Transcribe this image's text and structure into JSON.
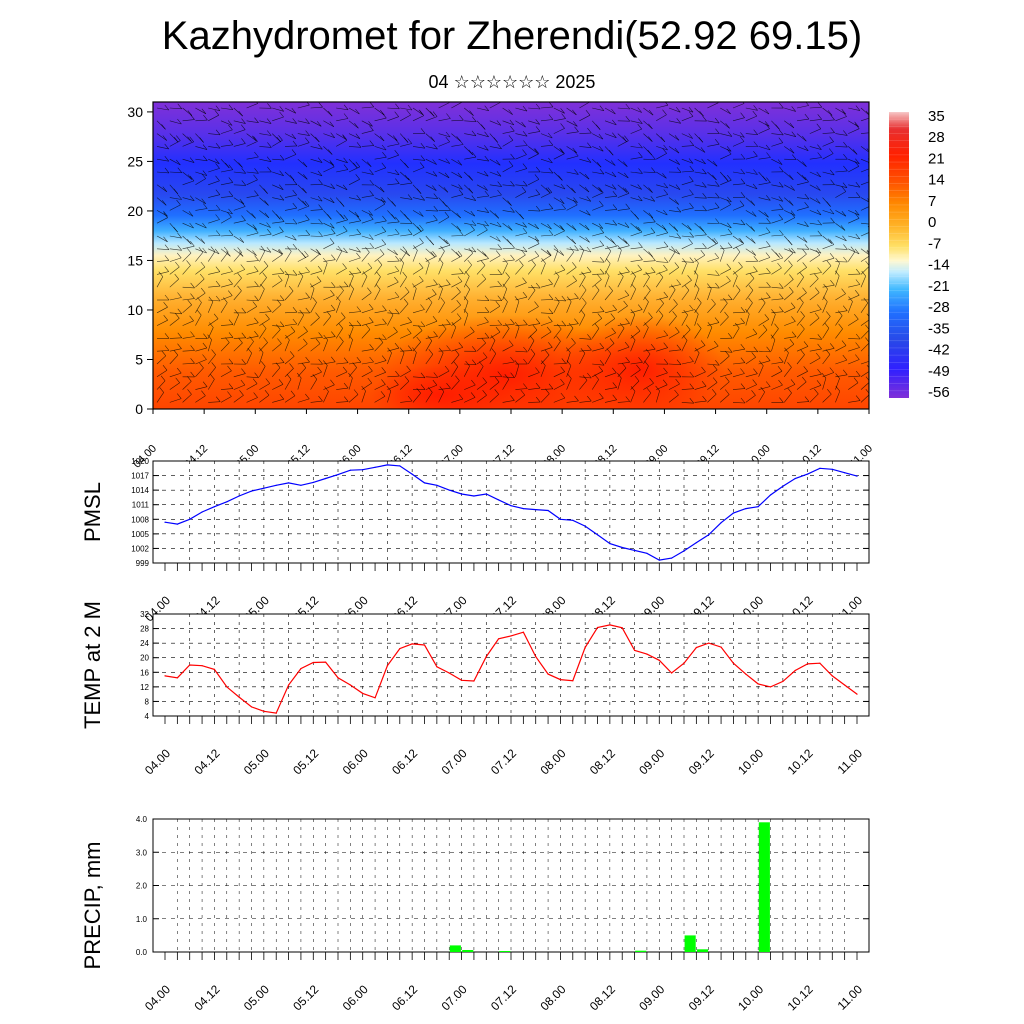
{
  "title": "Kazhydromet for Zherendi(52.92 69.15)",
  "subtitle": "04 ☆☆☆☆☆☆ 2025",
  "colors": {
    "pmsl_line": "#0000ff",
    "temp_line": "#ff0000",
    "precip_bar": "#00ff00"
  },
  "chart_data": [
    {
      "type": "heatmap",
      "name": "upper-air temperature cross-section",
      "xlabel": "",
      "ylabel": "",
      "x_ticks": [
        "04.00",
        "04.12",
        "05.00",
        "05.12",
        "06.00",
        "06.12",
        "07.00",
        "07.12",
        "08.00",
        "08.12",
        "09.00",
        "09.12",
        "10.00",
        "10.12",
        "11.00"
      ],
      "ylim": [
        0,
        31
      ],
      "y_ticks": [
        0,
        5,
        10,
        15,
        20,
        25,
        30
      ],
      "colorbar_labels": [
        "35",
        "28",
        "21",
        "14",
        "7",
        "0",
        "-7",
        "-14",
        "-21",
        "-28",
        "-35",
        "-42",
        "-49",
        "-56"
      ],
      "colorbar_colors": [
        "#f4c2c2",
        "#e83030",
        "#ff3000",
        "#ff5a00",
        "#ff8a00",
        "#ffb020",
        "#ffe066",
        "#fff6c0",
        "#b0e6ff",
        "#40b8ff",
        "#2070ff",
        "#2840e8",
        "#3020ff",
        "#7a30e0"
      ],
      "note_level_profile": [
        {
          "height": 0,
          "temp": 14
        },
        {
          "height": 5,
          "temp": 12
        },
        {
          "height": 10,
          "temp": 2
        },
        {
          "height": 15,
          "temp": -14
        },
        {
          "height": 17,
          "temp": -35
        },
        {
          "height": 20,
          "temp": -49
        },
        {
          "height": 25,
          "temp": -58
        },
        {
          "height": 30,
          "temp": -55
        }
      ]
    },
    {
      "type": "line",
      "ylabel": "PMSL",
      "ylim": [
        999,
        1020
      ],
      "y_ticks": [
        "1020",
        "1017",
        "1014",
        "1011",
        "1008",
        "1005",
        "1002",
        "999"
      ],
      "x_ticks": [
        "04.00",
        "04.12",
        "05.00",
        "05.12",
        "06.00",
        "06.12",
        "07.00",
        "07.12",
        "08.00",
        "08.12",
        "09.00",
        "09.12",
        "10.00",
        "10.12",
        "11.00"
      ],
      "x_hours": [
        0,
        3,
        6,
        9,
        12,
        15,
        18,
        21,
        24,
        27,
        30,
        33,
        36,
        39,
        42,
        45,
        48,
        51,
        54,
        57,
        60,
        63,
        66,
        69,
        72,
        75,
        78,
        81,
        84,
        87,
        90,
        93,
        96,
        99,
        102,
        105,
        108,
        111,
        114,
        117,
        120,
        123,
        126,
        129,
        132,
        135,
        138,
        141,
        144,
        147,
        150,
        153,
        156,
        159,
        162,
        165,
        168
      ],
      "values": [
        1007.4,
        1007.0,
        1008.0,
        1009.5,
        1010.6,
        1011.6,
        1012.8,
        1013.8,
        1014.4,
        1015.0,
        1015.5,
        1015.0,
        1015.6,
        1016.4,
        1017.2,
        1018.1,
        1018.2,
        1018.7,
        1019.2,
        1019.0,
        1017.3,
        1015.5,
        1015.0,
        1014.0,
        1013.2,
        1012.8,
        1013.2,
        1012.0,
        1010.8,
        1010.2,
        1010.0,
        1009.8,
        1008.0,
        1007.8,
        1006.6,
        1004.8,
        1003.0,
        1002.2,
        1001.6,
        1001.0,
        999.6,
        1000.0,
        1001.5,
        1003.2,
        1004.8,
        1007.3,
        1009.3,
        1010.2,
        1010.6,
        1013.0,
        1014.8,
        1016.4,
        1017.3,
        1018.5,
        1018.3,
        1017.6,
        1016.9
      ]
    },
    {
      "type": "line",
      "ylabel": "TEMP at 2 M",
      "ylim": [
        4,
        32
      ],
      "y_ticks": [
        "32",
        "28",
        "24",
        "20",
        "16",
        "12",
        "8",
        "4"
      ],
      "x_ticks": [
        "04.00",
        "04.12",
        "05.00",
        "05.12",
        "06.00",
        "06.12",
        "07.00",
        "07.12",
        "08.00",
        "08.12",
        "09.00",
        "09.12",
        "10.00",
        "10.12",
        "11.00"
      ],
      "x_hours": [
        0,
        3,
        6,
        9,
        12,
        15,
        18,
        21,
        24,
        27,
        30,
        33,
        36,
        39,
        42,
        45,
        48,
        51,
        54,
        57,
        60,
        63,
        66,
        69,
        72,
        75,
        78,
        81,
        84,
        87,
        90,
        93,
        96,
        99,
        102,
        105,
        108,
        111,
        114,
        117,
        120,
        123,
        126,
        129,
        132,
        135,
        138,
        141,
        144,
        147,
        150,
        153,
        156,
        159,
        162,
        165,
        168
      ],
      "values": [
        15.0,
        14.5,
        18.0,
        17.8,
        16.8,
        12.0,
        9.2,
        6.5,
        5.3,
        4.8,
        12.5,
        17.0,
        18.7,
        18.8,
        14.5,
        12.5,
        10.2,
        9.0,
        17.8,
        22.5,
        23.8,
        23.5,
        17.5,
        15.8,
        13.8,
        13.6,
        20.3,
        25.2,
        26.0,
        27.0,
        20.3,
        15.5,
        14.0,
        13.7,
        22.8,
        28.3,
        29.0,
        28.2,
        22.0,
        21.0,
        19.3,
        15.8,
        18.5,
        22.8,
        24.0,
        22.9,
        18.5,
        15.5,
        12.8,
        12.0,
        13.5,
        16.5,
        18.3,
        18.5,
        15.0,
        12.5,
        10.0
      ]
    },
    {
      "type": "bar",
      "ylabel": "PRECIP, mm",
      "ylim": [
        0,
        4
      ],
      "y_ticks": [
        "4.0",
        "3.0",
        "2.0",
        "1.0",
        "0.0"
      ],
      "x_ticks": [
        "04.00",
        "04.12",
        "05.00",
        "05.12",
        "06.00",
        "06.12",
        "07.00",
        "07.12",
        "08.00",
        "08.12",
        "09.00",
        "09.12",
        "10.00",
        "10.12",
        "11.00"
      ],
      "bars": [
        {
          "x_hour": 70.5,
          "value": 0.2
        },
        {
          "x_hour": 73.5,
          "value": 0.06
        },
        {
          "x_hour": 82.5,
          "value": 0.03
        },
        {
          "x_hour": 115.5,
          "value": 0.04
        },
        {
          "x_hour": 127.5,
          "value": 0.5
        },
        {
          "x_hour": 130.5,
          "value": 0.08
        },
        {
          "x_hour": 145.5,
          "value": 3.9
        }
      ]
    }
  ]
}
